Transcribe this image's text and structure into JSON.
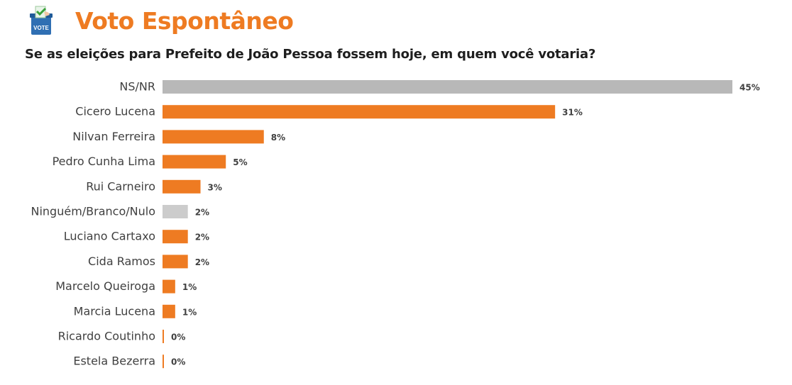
{
  "header": {
    "title": "Voto Espontâneo",
    "icon_label": "VOTE",
    "question": "Se as eleições para Prefeito de João Pessoa fossem hoje, em quem você votaria?"
  },
  "colors": {
    "accent": "#ee7b22",
    "gray_bar": "#b8b8b8",
    "light_gray_bar": "#cccccc",
    "label_text": "#404040",
    "value_text": "#404040"
  },
  "chart_data": {
    "type": "bar",
    "orientation": "horizontal",
    "title": "",
    "xlabel": "",
    "ylabel": "",
    "xlim": [
      0,
      45
    ],
    "grid": false,
    "categories": [
      "NS/NR",
      "Cicero Lucena",
      "Nilvan Ferreira",
      "Pedro Cunha Lima",
      "Rui Carneiro",
      "Ninguém/Branco/Nulo",
      "Luciano Cartaxo",
      "Cida Ramos",
      "Marcelo Queiroga",
      "Marcia Lucena",
      "Ricardo Coutinho",
      "Estela Bezerra"
    ],
    "values": [
      45,
      31,
      8,
      5,
      3,
      2,
      2,
      2,
      1,
      1,
      0,
      0
    ],
    "value_labels": [
      "45%",
      "31%",
      "8%",
      "5%",
      "3%",
      "2%",
      "2%",
      "2%",
      "1%",
      "1%",
      "0%",
      "0%"
    ],
    "bar_colors": [
      "#b8b8b8",
      "#ee7b22",
      "#ee7b22",
      "#ee7b22",
      "#ee7b22",
      "#cccccc",
      "#ee7b22",
      "#ee7b22",
      "#ee7b22",
      "#ee7b22",
      "#ee7b22",
      "#ee7b22"
    ]
  }
}
